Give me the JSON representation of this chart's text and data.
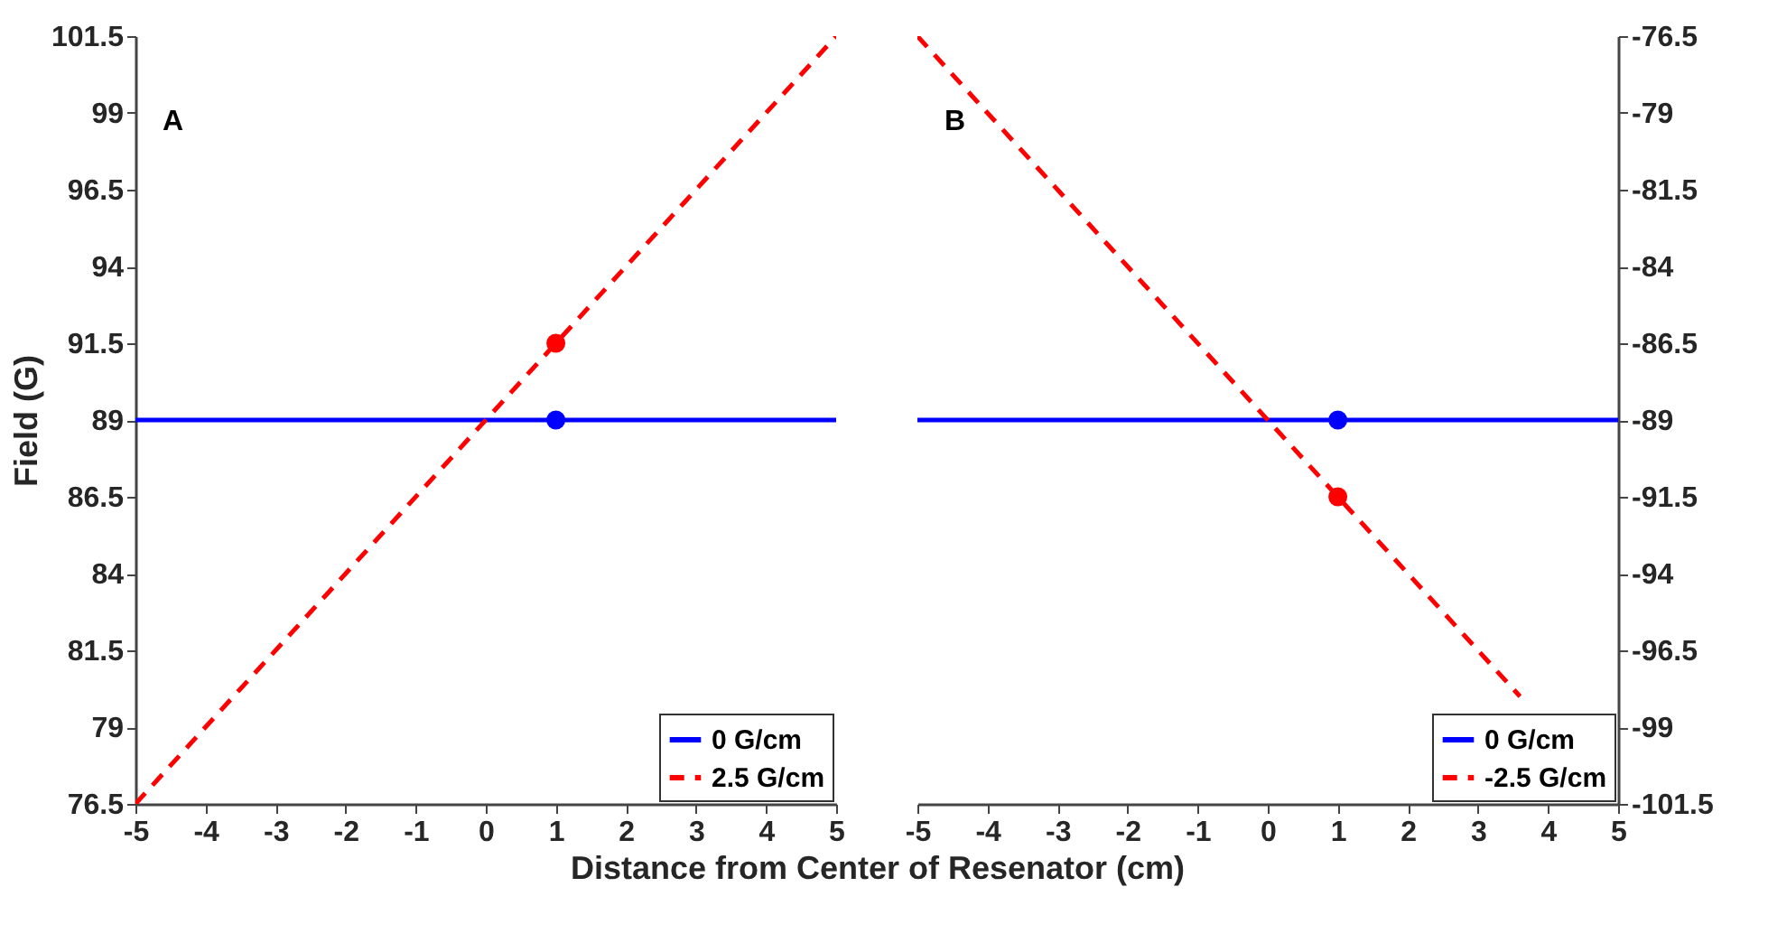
{
  "chart_data": [
    {
      "type": "line",
      "xlabel": "Distance from Center of Resenator (cm)",
      "ylabel": "Field (G)",
      "annotations": [
        "A"
      ],
      "legend": "bottom right",
      "xlim": [
        -5,
        5
      ],
      "xticks": [
        -5,
        -4,
        -3,
        -2,
        -1,
        0,
        1,
        2,
        3,
        4,
        5
      ],
      "ylim": [
        76.5,
        101.5
      ],
      "yticks": [
        76.5,
        79,
        81.5,
        84,
        86.5,
        89,
        91.5,
        94,
        96.5,
        99,
        101.5
      ],
      "series": [
        {
          "name": "0 G/cm",
          "color": "#0000ff",
          "x": [
            -5,
            5
          ],
          "values": [
            89,
            89
          ],
          "line_style": "solid"
        },
        {
          "name": "2.5 G/cm",
          "color": "#ff0000",
          "x": [
            -5,
            5
          ],
          "values": [
            76.5,
            101.5
          ],
          "line_style": "dashed"
        },
        {
          "type": "scatter",
          "color": "#0000ff",
          "x": [
            1
          ],
          "values": [
            89
          ],
          "marker": "circle"
        },
        {
          "type": "scatter",
          "color": "#ff0000",
          "x": [
            1
          ],
          "values": [
            91.5
          ],
          "marker": "circle"
        }
      ]
    },
    {
      "type": "line",
      "annotations": [
        "B"
      ],
      "legend": "bottom right",
      "xlim": [
        -5,
        5
      ],
      "xticks": [
        -5,
        -4,
        -3,
        -2,
        -1,
        0,
        1,
        2,
        3,
        4,
        5
      ],
      "y2lim": [
        -101.5,
        -76.5
      ],
      "y2ticks": [
        -101.5,
        -99,
        -96.5,
        -94,
        -91.5,
        -89,
        -86.5,
        -84,
        -81.5,
        -79,
        -76.5
      ],
      "series": [
        {
          "name": "0 G/cm",
          "color": "#0000ff",
          "x": [
            -5,
            5
          ],
          "values": [
            -89,
            -89
          ],
          "line_style": "solid",
          "axis": "y2"
        },
        {
          "name": "-2.5 G/cm",
          "color": "#ff0000",
          "x": [
            -5,
            3.6
          ],
          "values": [
            -76.5,
            -98
          ],
          "line_style": "dashed",
          "axis": "y2"
        },
        {
          "type": "scatter",
          "color": "#0000ff",
          "x": [
            1
          ],
          "values": [
            -89
          ],
          "marker": "circle",
          "axis": "y2"
        },
        {
          "type": "scatter",
          "color": "#ff0000",
          "x": [
            1
          ],
          "values": [
            -91.5
          ],
          "marker": "circle",
          "axis": "y2"
        }
      ]
    }
  ]
}
